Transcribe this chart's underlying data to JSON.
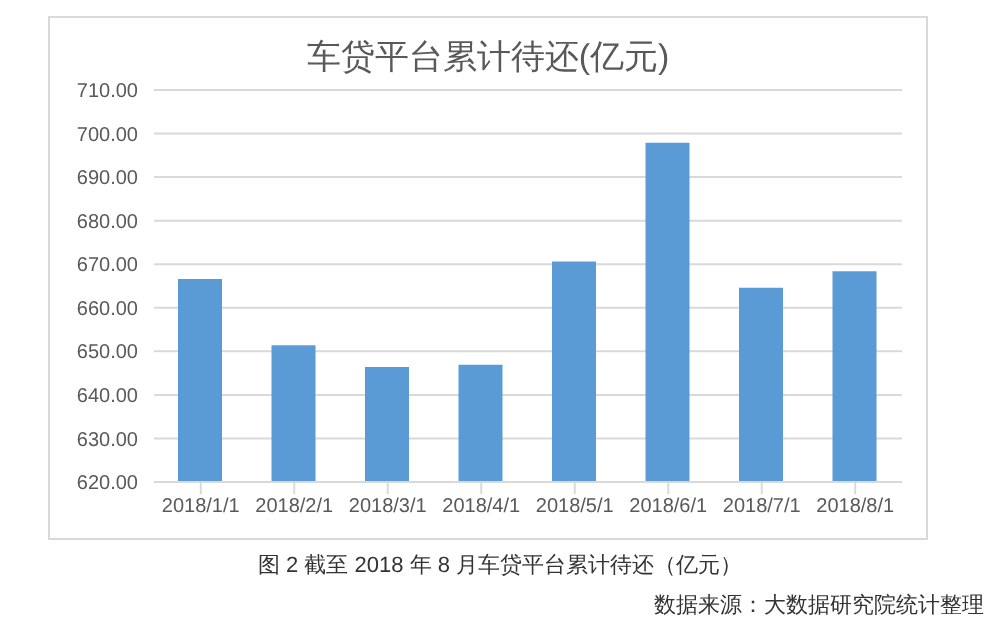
{
  "chart_data": {
    "type": "bar",
    "title": "车贷平台累计待还(亿元)",
    "categories": [
      "2018/1/1",
      "2018/2/1",
      "2018/3/1",
      "2018/4/1",
      "2018/5/1",
      "2018/6/1",
      "2018/7/1",
      "2018/8/1"
    ],
    "values": [
      666.6,
      651.4,
      646.4,
      646.9,
      670.6,
      697.9,
      664.6,
      668.4
    ],
    "color": "#5b9bd5",
    "ylim": [
      620,
      710
    ],
    "yticks": [
      {
        "value": 620,
        "label": "620.00"
      },
      {
        "value": 630,
        "label": "630.00"
      },
      {
        "value": 640,
        "label": "640.00"
      },
      {
        "value": 650,
        "label": "650.00"
      },
      {
        "value": 660,
        "label": "660.00"
      },
      {
        "value": 670,
        "label": "670.00"
      },
      {
        "value": 680,
        "label": "680.00"
      },
      {
        "value": 690,
        "label": "690.00"
      },
      {
        "value": 700,
        "label": "700.00"
      },
      {
        "value": 710,
        "label": "710.00"
      }
    ],
    "grid": "y",
    "annotations": [
      "图 2 截至 2018 年 8 月车贷平台累计待还（亿元）",
      "数据来源：大数据研究院统计整理"
    ]
  }
}
